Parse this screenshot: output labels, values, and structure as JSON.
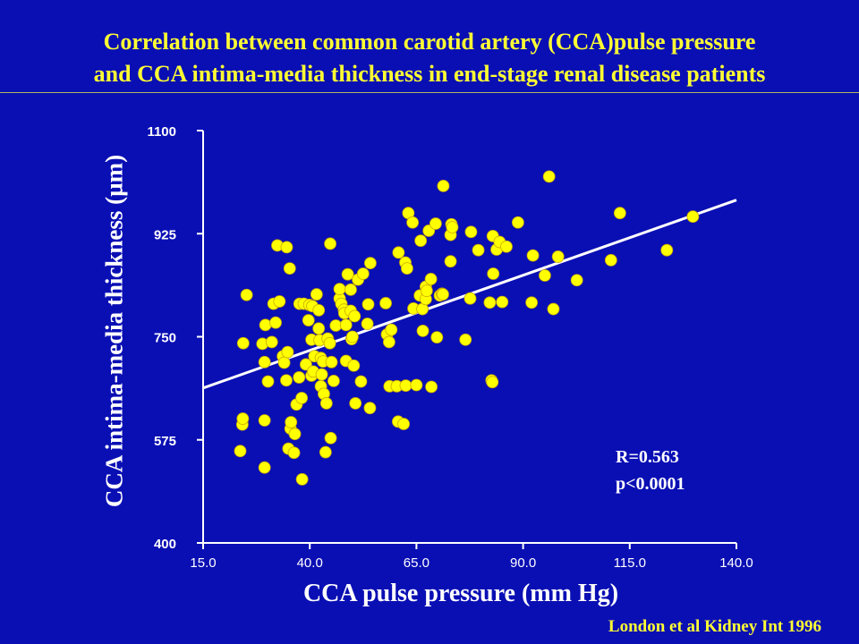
{
  "title_line1": "Correlation between common carotid artery (CCA)pulse pressure",
  "title_line2": "and CCA intima-media thickness in end-stage renal disease patients",
  "stats": {
    "r": "R=0.563",
    "p": "p<0.0001"
  },
  "source": "London et al Kidney Int 1996",
  "colors": {
    "background": "#0a0fb4",
    "points": "#ffff00",
    "title": "#ffff33",
    "text": "#ffffff"
  },
  "chart_data": {
    "type": "scatter",
    "xlabel": "CCA pulse pressure (mm Hg)",
    "ylabel": "CCA intima-media thickness (µm)",
    "xlim": [
      15,
      140
    ],
    "ylim": [
      400,
      1100
    ],
    "xticks": [
      "15.0",
      "40.0",
      "65.0",
      "90.0",
      "115.0",
      "140.0"
    ],
    "yticks": [
      "400",
      "575",
      "750",
      "925",
      "1100"
    ],
    "grid": false,
    "trendline": {
      "x": [
        15,
        140
      ],
      "y": [
        663,
        982
      ]
    },
    "points": [
      [
        23.7,
        556
      ],
      [
        24.2,
        601
      ],
      [
        24.3,
        611
      ],
      [
        24.4,
        739
      ],
      [
        25.2,
        821
      ],
      [
        28.9,
        738
      ],
      [
        29.4,
        608
      ],
      [
        29.4,
        528
      ],
      [
        29.4,
        707
      ],
      [
        29.6,
        770
      ],
      [
        30.2,
        674
      ],
      [
        31.1,
        741
      ],
      [
        31.5,
        806
      ],
      [
        32,
        774
      ],
      [
        32.4,
        905
      ],
      [
        32.9,
        810
      ],
      [
        33.7,
        717
      ],
      [
        34,
        706
      ],
      [
        34.5,
        676
      ],
      [
        34.6,
        902
      ],
      [
        34.8,
        724
      ],
      [
        35,
        560
      ],
      [
        35.3,
        866
      ],
      [
        35.5,
        594
      ],
      [
        35.6,
        605
      ],
      [
        36.3,
        553
      ],
      [
        36.5,
        585
      ],
      [
        36.9,
        635
      ],
      [
        37.5,
        681
      ],
      [
        37.6,
        806
      ],
      [
        38.1,
        646
      ],
      [
        38.2,
        508
      ],
      [
        38.6,
        806
      ],
      [
        39.1,
        703
      ],
      [
        39.7,
        778
      ],
      [
        39.9,
        804
      ],
      [
        40.4,
        745
      ],
      [
        40.4,
        684
      ],
      [
        40.6,
        802
      ],
      [
        40.8,
        691
      ],
      [
        41.1,
        717
      ],
      [
        41.6,
        822
      ],
      [
        42.1,
        795
      ],
      [
        42.1,
        764
      ],
      [
        42.3,
        744
      ],
      [
        42.6,
        714
      ],
      [
        42.6,
        666
      ],
      [
        42.8,
        686
      ],
      [
        43.1,
        708
      ],
      [
        43.3,
        653
      ],
      [
        43.7,
        554
      ],
      [
        43.9,
        637
      ],
      [
        44.2,
        747
      ],
      [
        44.7,
        739
      ],
      [
        44.8,
        908
      ],
      [
        44.9,
        578
      ],
      [
        45.1,
        707
      ],
      [
        45.6,
        675
      ],
      [
        46.1,
        769
      ],
      [
        47,
        815
      ],
      [
        47,
        831
      ],
      [
        47.4,
        806
      ],
      [
        48,
        796
      ],
      [
        48.1,
        790
      ],
      [
        48.5,
        770
      ],
      [
        48.5,
        709
      ],
      [
        48.9,
        856
      ],
      [
        49.6,
        830
      ],
      [
        49.6,
        794
      ],
      [
        49.8,
        746
      ],
      [
        50,
        750
      ],
      [
        50.3,
        701
      ],
      [
        50.5,
        785
      ],
      [
        50.7,
        637
      ],
      [
        51.3,
        847
      ],
      [
        52,
        674
      ],
      [
        52.5,
        857
      ],
      [
        53.5,
        772
      ],
      [
        53.7,
        805
      ],
      [
        54.1,
        629
      ],
      [
        54.2,
        875
      ],
      [
        57.8,
        807
      ],
      [
        58.1,
        754
      ],
      [
        58.6,
        741
      ],
      [
        58.7,
        666
      ],
      [
        59.1,
        762
      ],
      [
        60.4,
        666
      ],
      [
        60.7,
        606
      ],
      [
        60.8,
        893
      ],
      [
        62,
        602
      ],
      [
        62.4,
        876
      ],
      [
        62.5,
        667
      ],
      [
        62.8,
        866
      ],
      [
        63.1,
        960
      ],
      [
        64.1,
        944
      ],
      [
        64.3,
        798
      ],
      [
        65,
        668
      ],
      [
        65.8,
        820
      ],
      [
        66,
        913
      ],
      [
        66.4,
        797
      ],
      [
        66.5,
        760
      ],
      [
        67.2,
        814
      ],
      [
        67.2,
        835
      ],
      [
        67.4,
        828
      ],
      [
        67.9,
        930
      ],
      [
        68.4,
        848
      ],
      [
        68.5,
        665
      ],
      [
        69.5,
        942
      ],
      [
        69.8,
        749
      ],
      [
        70.5,
        820
      ],
      [
        71,
        823
      ],
      [
        71.2,
        822
      ],
      [
        71.3,
        1006
      ],
      [
        73,
        923
      ],
      [
        73,
        878
      ],
      [
        73.2,
        941
      ],
      [
        73.4,
        936
      ],
      [
        76.5,
        745
      ],
      [
        77.6,
        815
      ],
      [
        77.8,
        928
      ],
      [
        79.5,
        897
      ],
      [
        82.2,
        808
      ],
      [
        82.6,
        676
      ],
      [
        82.8,
        673
      ],
      [
        82.9,
        921
      ],
      [
        83,
        857
      ],
      [
        83.8,
        898
      ],
      [
        84.5,
        911
      ],
      [
        85.1,
        809
      ],
      [
        86.1,
        903
      ],
      [
        88.8,
        944
      ],
      [
        92,
        808
      ],
      [
        92.3,
        888
      ],
      [
        95.1,
        854
      ],
      [
        96.1,
        1022
      ],
      [
        97.1,
        797
      ],
      [
        98.2,
        886
      ],
      [
        102.6,
        846
      ],
      [
        110.6,
        880
      ],
      [
        112.7,
        960
      ],
      [
        123.7,
        897
      ],
      [
        129.8,
        954
      ]
    ]
  }
}
